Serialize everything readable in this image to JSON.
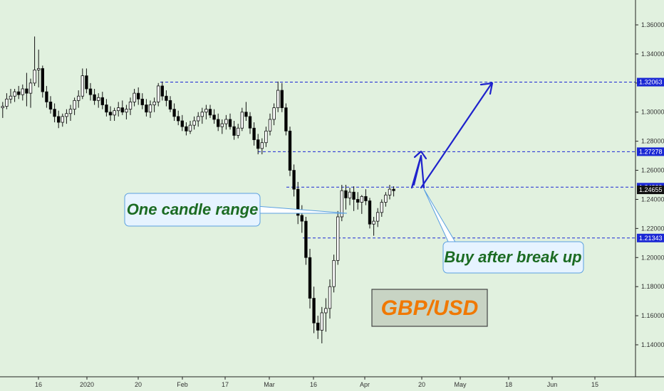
{
  "chart_data": {
    "type": "candlestick",
    "symbol": "GBP/USD",
    "y_ticks": [
      "1.36000",
      "1.34000",
      "1.32000",
      "1.30000",
      "1.28000",
      "1.26000",
      "1.24000",
      "1.22000",
      "1.20000",
      "1.18000",
      "1.16000",
      "1.14000"
    ],
    "ylim": [
      1.128,
      1.372
    ],
    "x_ticks": [
      "16",
      "2020",
      "20",
      "Feb",
      "17",
      "Mar",
      "16",
      "Apr",
      "20",
      "May",
      "18",
      "Jun",
      "15"
    ],
    "price_labels": [
      {
        "text": "1.32063",
        "value": 1.32063,
        "style": "level"
      },
      {
        "text": "1.27278",
        "value": 1.27278,
        "style": "level"
      },
      {
        "text": "1.24839",
        "value": 1.24839,
        "style": "level"
      },
      {
        "text": "1.24655",
        "value": 1.24655,
        "style": "last"
      },
      {
        "text": "1.21343",
        "value": 1.21343,
        "style": "level"
      }
    ],
    "levels": [
      1.32063,
      1.27278,
      1.24839,
      1.21343
    ],
    "candles": [
      [
        1.303,
        1.307,
        1.296,
        1.304
      ],
      [
        1.304,
        1.313,
        1.302,
        1.309
      ],
      [
        1.309,
        1.316,
        1.306,
        1.311
      ],
      [
        1.311,
        1.316,
        1.307,
        1.314
      ],
      [
        1.314,
        1.318,
        1.309,
        1.312
      ],
      [
        1.312,
        1.319,
        1.308,
        1.316
      ],
      [
        1.316,
        1.327,
        1.304,
        1.313
      ],
      [
        1.313,
        1.323,
        1.303,
        1.32
      ],
      [
        1.32,
        1.352,
        1.318,
        1.329
      ],
      [
        1.329,
        1.343,
        1.317,
        1.33
      ],
      [
        1.33,
        1.332,
        1.31,
        1.314
      ],
      [
        1.314,
        1.318,
        1.303,
        1.307
      ],
      [
        1.307,
        1.311,
        1.299,
        1.302
      ],
      [
        1.302,
        1.306,
        1.293,
        1.297
      ],
      [
        1.297,
        1.301,
        1.289,
        1.293
      ],
      [
        1.293,
        1.299,
        1.29,
        1.297
      ],
      [
        1.297,
        1.302,
        1.292,
        1.299
      ],
      [
        1.299,
        1.305,
        1.294,
        1.302
      ],
      [
        1.302,
        1.31,
        1.298,
        1.308
      ],
      [
        1.308,
        1.315,
        1.303,
        1.311
      ],
      [
        1.311,
        1.33,
        1.309,
        1.325
      ],
      [
        1.325,
        1.33,
        1.313,
        1.316
      ],
      [
        1.316,
        1.32,
        1.308,
        1.312
      ],
      [
        1.312,
        1.316,
        1.305,
        1.308
      ],
      [
        1.308,
        1.313,
        1.303,
        1.31
      ],
      [
        1.31,
        1.314,
        1.302,
        1.305
      ],
      [
        1.305,
        1.309,
        1.297,
        1.3
      ],
      [
        1.3,
        1.304,
        1.294,
        1.298
      ],
      [
        1.298,
        1.303,
        1.294,
        1.301
      ],
      [
        1.301,
        1.307,
        1.297,
        1.303
      ],
      [
        1.303,
        1.308,
        1.298,
        1.3
      ],
      [
        1.3,
        1.305,
        1.295,
        1.302
      ],
      [
        1.302,
        1.31,
        1.298,
        1.307
      ],
      [
        1.307,
        1.316,
        1.304,
        1.313
      ],
      [
        1.313,
        1.317,
        1.305,
        1.309
      ],
      [
        1.309,
        1.313,
        1.302,
        1.305
      ],
      [
        1.305,
        1.309,
        1.297,
        1.3
      ],
      [
        1.3,
        1.308,
        1.296,
        1.305
      ],
      [
        1.305,
        1.31,
        1.3,
        1.307
      ],
      [
        1.307,
        1.32,
        1.304,
        1.318
      ],
      [
        1.318,
        1.321,
        1.308,
        1.311
      ],
      [
        1.311,
        1.315,
        1.304,
        1.308
      ],
      [
        1.308,
        1.311,
        1.3,
        1.302
      ],
      [
        1.302,
        1.306,
        1.294,
        1.297
      ],
      [
        1.297,
        1.301,
        1.291,
        1.294
      ],
      [
        1.294,
        1.298,
        1.287,
        1.29
      ],
      [
        1.29,
        1.293,
        1.284,
        1.287
      ],
      [
        1.287,
        1.294,
        1.285,
        1.291
      ],
      [
        1.291,
        1.297,
        1.288,
        1.294
      ],
      [
        1.294,
        1.3,
        1.29,
        1.297
      ],
      [
        1.297,
        1.303,
        1.292,
        1.3
      ],
      [
        1.3,
        1.305,
        1.295,
        1.302
      ],
      [
        1.302,
        1.305,
        1.296,
        1.298
      ],
      [
        1.298,
        1.302,
        1.292,
        1.295
      ],
      [
        1.295,
        1.299,
        1.287,
        1.29
      ],
      [
        1.29,
        1.295,
        1.285,
        1.292
      ],
      [
        1.292,
        1.298,
        1.288,
        1.295
      ],
      [
        1.295,
        1.299,
        1.288,
        1.29
      ],
      [
        1.29,
        1.294,
        1.281,
        1.284
      ],
      [
        1.284,
        1.292,
        1.282,
        1.289
      ],
      [
        1.289,
        1.303,
        1.287,
        1.3
      ],
      [
        1.3,
        1.307,
        1.294,
        1.297
      ],
      [
        1.297,
        1.3,
        1.285,
        1.289
      ],
      [
        1.289,
        1.293,
        1.277,
        1.281
      ],
      [
        1.281,
        1.285,
        1.271,
        1.275
      ],
      [
        1.275,
        1.282,
        1.271,
        1.279
      ],
      [
        1.279,
        1.29,
        1.276,
        1.287
      ],
      [
        1.287,
        1.299,
        1.284,
        1.295
      ],
      [
        1.295,
        1.306,
        1.291,
        1.303
      ],
      [
        1.303,
        1.321,
        1.3,
        1.315
      ],
      [
        1.315,
        1.32,
        1.3,
        1.303
      ],
      [
        1.303,
        1.306,
        1.284,
        1.287
      ],
      [
        1.287,
        1.29,
        1.256,
        1.26
      ],
      [
        1.26,
        1.264,
        1.242,
        1.247
      ],
      [
        1.247,
        1.252,
        1.223,
        1.229
      ],
      [
        1.229,
        1.236,
        1.217,
        1.225
      ],
      [
        1.225,
        1.228,
        1.195,
        1.2
      ],
      [
        1.2,
        1.206,
        1.165,
        1.172
      ],
      [
        1.172,
        1.18,
        1.148,
        1.155
      ],
      [
        1.155,
        1.16,
        1.144,
        1.15
      ],
      [
        1.15,
        1.166,
        1.141,
        1.162
      ],
      [
        1.162,
        1.172,
        1.149,
        1.165
      ],
      [
        1.165,
        1.185,
        1.158,
        1.18
      ],
      [
        1.18,
        1.202,
        1.176,
        1.198
      ],
      [
        1.198,
        1.232,
        1.195,
        1.228
      ],
      [
        1.228,
        1.25,
        1.225,
        1.246
      ],
      [
        1.246,
        1.25,
        1.233,
        1.241
      ],
      [
        1.241,
        1.248,
        1.236,
        1.245
      ],
      [
        1.245,
        1.249,
        1.232,
        1.24
      ],
      [
        1.24,
        1.245,
        1.233,
        1.238
      ],
      [
        1.238,
        1.243,
        1.23,
        1.242
      ],
      [
        1.242,
        1.247,
        1.236,
        1.239
      ],
      [
        1.239,
        1.241,
        1.22,
        1.223
      ],
      [
        1.223,
        1.228,
        1.215,
        1.225
      ],
      [
        1.225,
        1.234,
        1.221,
        1.231
      ],
      [
        1.231,
        1.24,
        1.228,
        1.238
      ],
      [
        1.238,
        1.245,
        1.235,
        1.243
      ],
      [
        1.243,
        1.25,
        1.24,
        1.247
      ],
      [
        1.247,
        1.249,
        1.242,
        1.246
      ]
    ]
  },
  "annotations": {
    "one_candle_range": "One candle range",
    "buy_after_break": "Buy after break up",
    "symbol_box": "GBP/USD"
  },
  "colors": {
    "background": "#e1f1df",
    "level_line": "#1a27d4",
    "arrow": "#1e22cc",
    "callout_text": "#1b6b22",
    "callout_border": "#5aa0e0",
    "symbol_text": "#f07800",
    "symbol_box_bg": "#c8d4c4",
    "candle_up_fill": "#ffffff",
    "candle_down_fill": "#000000"
  }
}
